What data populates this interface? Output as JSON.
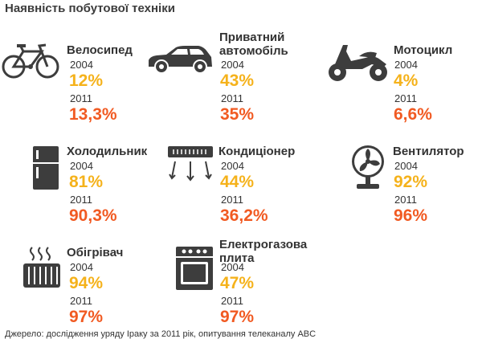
{
  "title": "Наявність побутової техніки",
  "source": "Джерело: дослідження уряду Іраку за 2011 рік, опитування телеканалу ABC",
  "colors": {
    "year2004": "#f5b21b",
    "year2011": "#f15a22",
    "icon": "#3d3d3d"
  },
  "items": [
    {
      "name": "Велосипед",
      "icon": "bicycle-icon",
      "y1": "2004",
      "v1": "12%",
      "y2": "2011",
      "v2": "13,3%"
    },
    {
      "name": "Приватний\nавтомобіль",
      "icon": "car-icon",
      "y1": "2004",
      "v1": "43%",
      "y2": "2011",
      "v2": "35%"
    },
    {
      "name": "Мотоцикл",
      "icon": "motorcycle-icon",
      "y1": "2004",
      "v1": "4%",
      "y2": "2011",
      "v2": "6,6%"
    },
    {
      "name": "Холодильник",
      "icon": "refrigerator-icon",
      "y1": "2004",
      "v1": "81%",
      "y2": "2011",
      "v2": "90,3%"
    },
    {
      "name": "Кондиціонер",
      "icon": "air-conditioner-icon",
      "y1": "2004",
      "v1": "44%",
      "y2": "2011",
      "v2": "36,2%"
    },
    {
      "name": "Вентилятор",
      "icon": "fan-icon",
      "y1": "2004",
      "v1": "92%",
      "y2": "2011",
      "v2": "96%"
    },
    {
      "name": "Обігрівач",
      "icon": "heater-icon",
      "y1": "2004",
      "v1": "94%",
      "y2": "2011",
      "v2": "97%"
    },
    {
      "name": "Електрогазова\nплита",
      "icon": "stove-icon",
      "y1": "2004",
      "v1": "47%",
      "y2": "2011",
      "v2": "97%"
    }
  ]
}
